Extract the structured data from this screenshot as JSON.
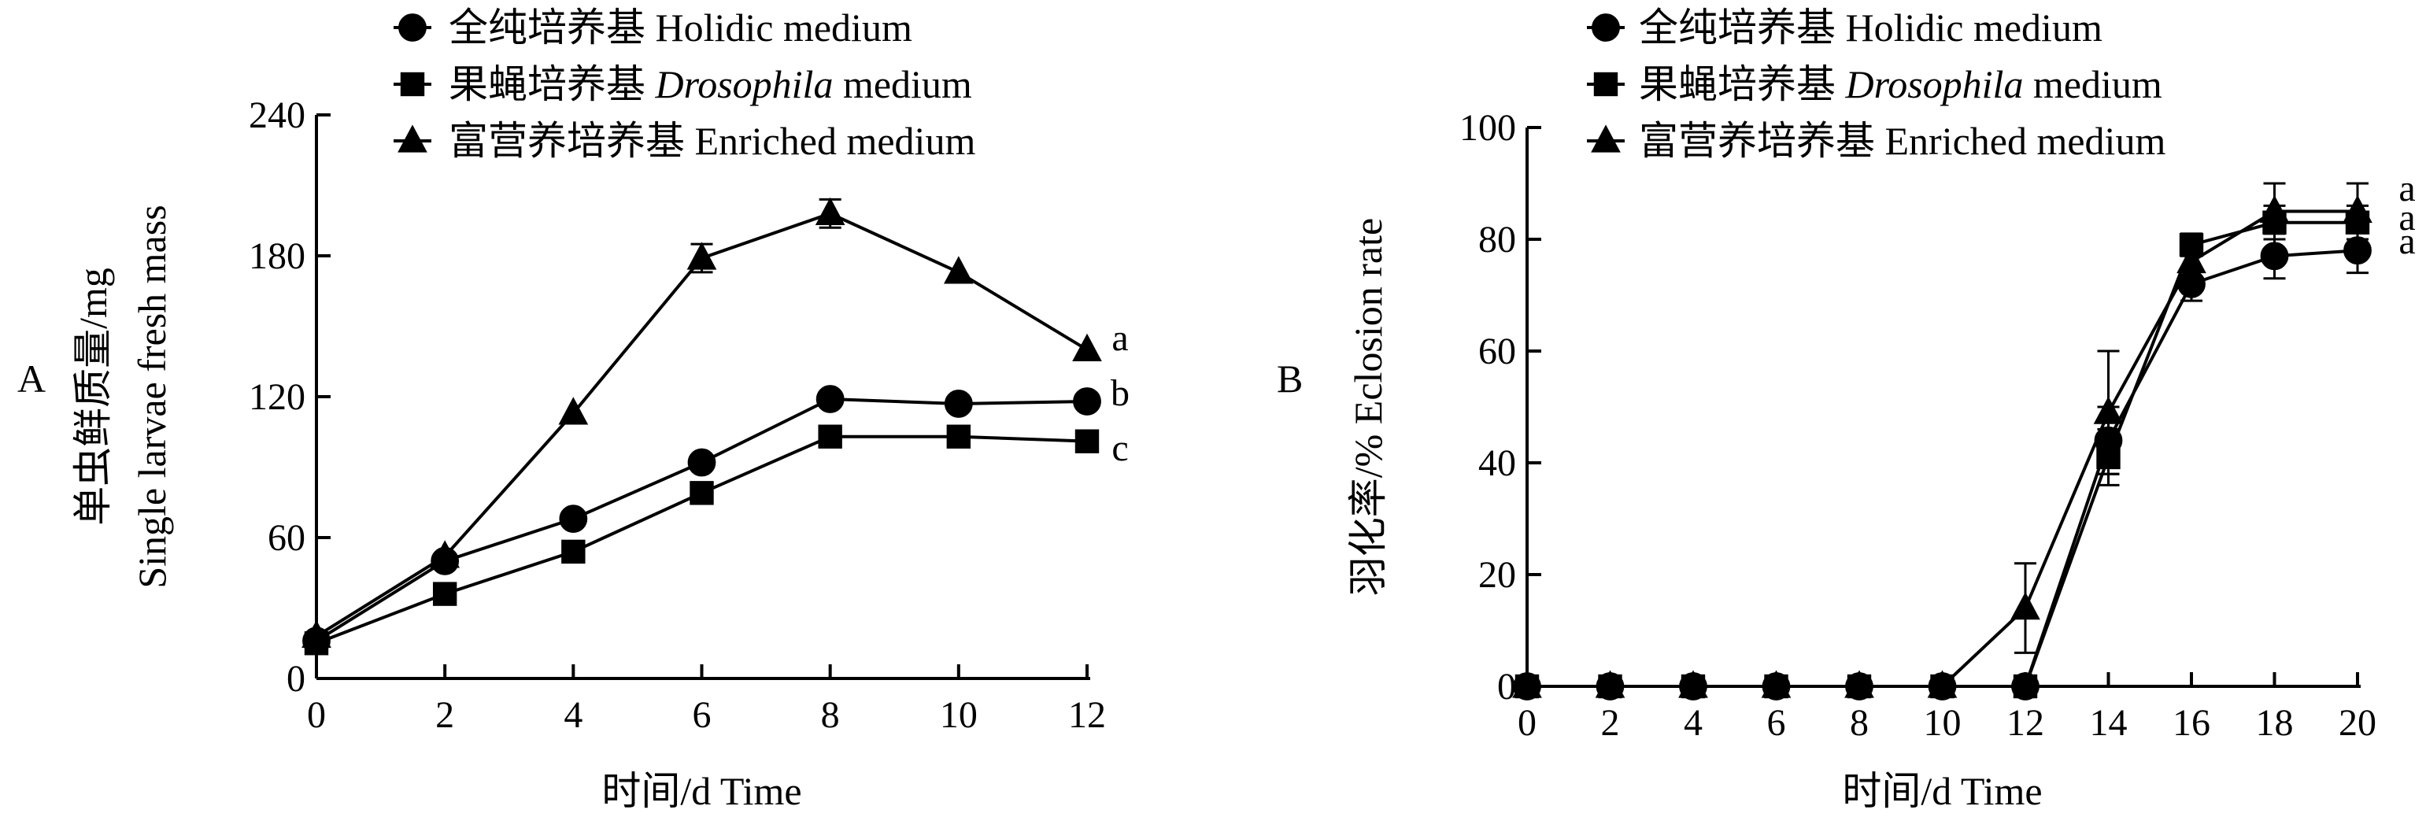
{
  "chart_data": [
    {
      "panel_label": "A",
      "type": "line",
      "xlabel": "时间/d Time",
      "ylabel_zh": "单虫鲜质量/mg",
      "ylabel_en": "Single larvae fresh mass",
      "xlim": [
        0,
        12
      ],
      "ylim": [
        0,
        240
      ],
      "xticks": [
        0,
        2,
        4,
        6,
        8,
        10,
        12
      ],
      "yticks": [
        0,
        60,
        120,
        180,
        240
      ],
      "legend_position": "top",
      "series": [
        {
          "name": "全纯培养基 Holidic medium",
          "marker": "circle",
          "x": [
            0,
            2,
            4,
            6,
            8,
            10,
            12
          ],
          "y": [
            16,
            50,
            68,
            92,
            119,
            117,
            118
          ],
          "err": [
            0,
            0,
            0,
            0,
            0,
            0,
            0
          ],
          "sig_letter": "b"
        },
        {
          "name": "果蝇培养基 Drosophila medium",
          "name_parts": [
            "果蝇培养基 ",
            "Drosophila",
            " medium"
          ],
          "marker": "square",
          "x": [
            0,
            2,
            4,
            6,
            8,
            10,
            12
          ],
          "y": [
            15,
            36,
            54,
            79,
            103,
            103,
            101
          ],
          "err": [
            0,
            0,
            0,
            0,
            0,
            0,
            0
          ],
          "sig_letter": "c"
        },
        {
          "name": "富营养培养基 Enriched medium",
          "marker": "triangle",
          "x": [
            0,
            2,
            4,
            6,
            8,
            10,
            12
          ],
          "y": [
            18,
            52,
            113,
            179,
            198,
            173,
            140
          ],
          "err": [
            0,
            0,
            0,
            6,
            6,
            0,
            0
          ],
          "sig_letter": "a"
        }
      ]
    },
    {
      "panel_label": "B",
      "type": "line",
      "xlabel": "时间/d Time",
      "ylabel_zh": "羽化率/%",
      "ylabel_en": "Eclosion rate",
      "xlim": [
        0,
        20
      ],
      "ylim": [
        0,
        100
      ],
      "xticks": [
        0,
        2,
        4,
        6,
        8,
        10,
        12,
        14,
        16,
        18,
        20
      ],
      "yticks": [
        0,
        20,
        40,
        60,
        80,
        100
      ],
      "legend_position": "top",
      "series": [
        {
          "name": "全纯培养基 Holidic medium",
          "marker": "circle",
          "x": [
            0,
            2,
            4,
            6,
            8,
            10,
            12,
            14,
            16,
            18,
            20
          ],
          "y": [
            0,
            0,
            0,
            0,
            0,
            0,
            0,
            44,
            72,
            77,
            78
          ],
          "err": [
            0,
            0,
            0,
            0,
            0,
            0,
            0,
            6,
            3,
            4,
            4
          ],
          "sig_letter": "a"
        },
        {
          "name": "果蝇培养基 Drosophila medium",
          "name_parts": [
            "果蝇培养基 ",
            "Drosophila",
            " medium"
          ],
          "marker": "square",
          "x": [
            0,
            2,
            4,
            6,
            8,
            10,
            12,
            14,
            16,
            18,
            20
          ],
          "y": [
            0,
            0,
            0,
            0,
            0,
            0,
            0,
            41,
            79,
            83,
            83
          ],
          "err": [
            0,
            0,
            0,
            0,
            0,
            0,
            0,
            5,
            2,
            3,
            3
          ],
          "sig_letter": "a"
        },
        {
          "name": "富营养培养基 Enriched medium",
          "marker": "triangle",
          "x": [
            0,
            2,
            4,
            6,
            8,
            10,
            12,
            14,
            16,
            18,
            20
          ],
          "y": [
            0,
            0,
            0,
            0,
            0,
            0,
            14,
            49,
            76,
            85,
            85
          ],
          "err": [
            0,
            0,
            0,
            0,
            0,
            0,
            8,
            11,
            4,
            5,
            5
          ],
          "sig_letter": "a"
        }
      ]
    }
  ]
}
